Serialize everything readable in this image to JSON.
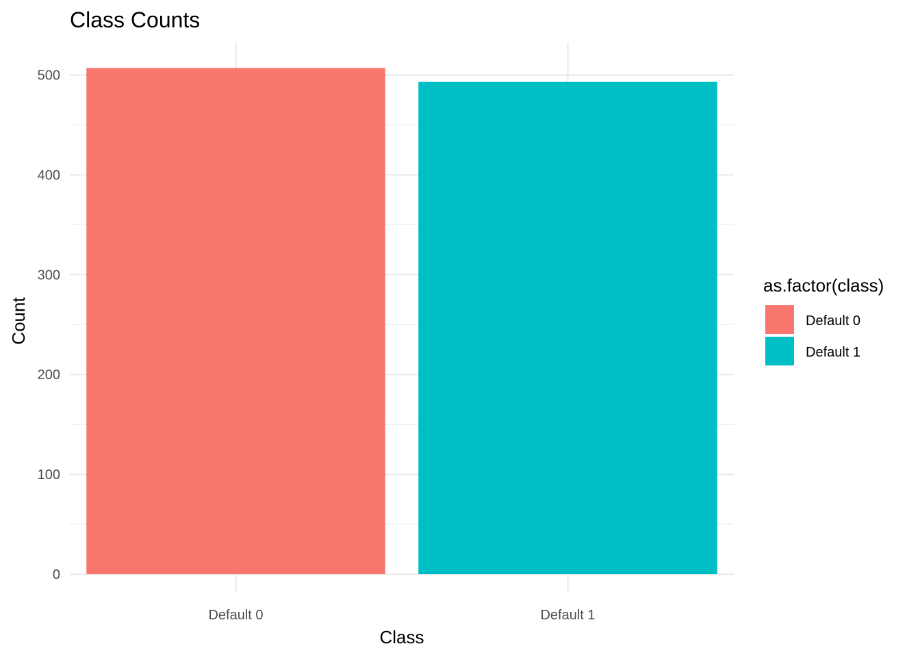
{
  "chart_data": {
    "type": "bar",
    "title": "Class Counts",
    "xlabel": "Class",
    "ylabel": "Count",
    "categories": [
      "Default 0",
      "Default 1"
    ],
    "values": [
      507,
      493
    ],
    "colors": [
      "#F8766D",
      "#00BFC4"
    ],
    "ylim": [
      0,
      507
    ],
    "yticks": [
      0,
      100,
      200,
      300,
      400,
      500
    ],
    "yticks_minor": [
      50,
      150,
      250,
      350,
      450
    ],
    "grid": true,
    "legend": {
      "title": "as.factor(class)",
      "position": "right",
      "items": [
        "Default 0",
        "Default 1"
      ]
    }
  }
}
